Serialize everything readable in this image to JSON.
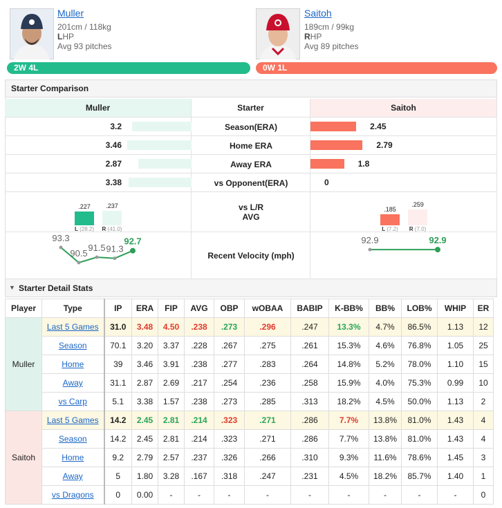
{
  "players": [
    {
      "name": "Muller",
      "size": "201cm / 118kg",
      "hand": "L",
      "throws": "HP",
      "pitches": "Avg 93 pitches",
      "record": "2W 4L"
    },
    {
      "name": "Saitoh",
      "size": "189cm / 99kg",
      "hand": "R",
      "throws": "HP",
      "pitches": "Avg 89 pitches",
      "record": "0W 1L"
    }
  ],
  "comparison": {
    "title": "Starter Comparison",
    "header": [
      "Muller",
      "Starter",
      "Saitoh"
    ],
    "rows": [
      {
        "label": "Season(ERA)",
        "values": [
          3.2,
          2.45
        ]
      },
      {
        "label": "Home ERA",
        "values": [
          3.46,
          2.79
        ]
      },
      {
        "label": "Away ERA",
        "values": [
          2.87,
          1.8
        ]
      },
      {
        "label": "vs Opponent(ERA)",
        "values": [
          3.38,
          0
        ]
      }
    ],
    "avg": {
      "label": [
        "vs L/R",
        "AVG"
      ],
      "splits": [
        [
          {
            "side": "L",
            "value": 0.227,
            "label": ".227",
            "sample": "(28.2)"
          },
          {
            "side": "R",
            "value": 0.237,
            "label": ".237",
            "sample": "(41.0)"
          }
        ],
        [
          {
            "side": "L",
            "value": 0.185,
            "label": ".185",
            "sample": "(7.2)"
          },
          {
            "side": "R",
            "value": 0.259,
            "label": ".259",
            "sample": "(7.0)"
          }
        ]
      ]
    },
    "velocity": {
      "label": "Recent Velocity (mph)",
      "series": [
        [
          93.3,
          90.5,
          91.5,
          91.3,
          92.7
        ],
        [
          92.9,
          92.9
        ]
      ]
    }
  },
  "details": {
    "title": "Starter Detail Stats",
    "columns": [
      "Player",
      "Type",
      "IP",
      "ERA",
      "FIP",
      "AVG",
      "OBP",
      "wOBAA",
      "BABIP",
      "K-BB%",
      "BB%",
      "LOB%",
      "WHIP",
      "ER"
    ],
    "groups": [
      {
        "player": "Muller",
        "rows": [
          {
            "type": "Last 5 Games",
            "cells": [
              "31.0",
              "3.48",
              "4.50",
              ".238",
              ".273",
              ".296",
              ".247",
              "13.3%",
              "4.7%",
              "86.5%",
              "1.13",
              "12"
            ]
          },
          {
            "type": "Season",
            "cells": [
              "70.1",
              "3.20",
              "3.37",
              ".228",
              ".267",
              ".275",
              ".261",
              "15.3%",
              "4.6%",
              "76.8%",
              "1.05",
              "25"
            ]
          },
          {
            "type": "Home",
            "cells": [
              "39",
              "3.46",
              "3.91",
              ".238",
              ".277",
              ".283",
              ".264",
              "14.8%",
              "5.2%",
              "78.0%",
              "1.10",
              "15"
            ]
          },
          {
            "type": "Away",
            "cells": [
              "31.1",
              "2.87",
              "2.69",
              ".217",
              ".254",
              ".236",
              ".258",
              "15.9%",
              "4.0%",
              "75.3%",
              "0.99",
              "10"
            ]
          },
          {
            "type": "vs Carp",
            "cells": [
              "5.1",
              "3.38",
              "1.57",
              ".238",
              ".273",
              ".285",
              ".313",
              "18.2%",
              "4.5%",
              "50.0%",
              "1.13",
              "2"
            ]
          }
        ]
      },
      {
        "player": "Saitoh",
        "rows": [
          {
            "type": "Last 5 Games",
            "cells": [
              "14.2",
              "2.45",
              "2.81",
              ".214",
              ".323",
              ".271",
              ".286",
              "7.7%",
              "13.8%",
              "81.0%",
              "1.43",
              "4"
            ]
          },
          {
            "type": "Season",
            "cells": [
              "14.2",
              "2.45",
              "2.81",
              ".214",
              ".323",
              ".271",
              ".286",
              "7.7%",
              "13.8%",
              "81.0%",
              "1.43",
              "4"
            ]
          },
          {
            "type": "Home",
            "cells": [
              "9.2",
              "2.79",
              "2.57",
              ".237",
              ".326",
              ".266",
              ".310",
              "9.3%",
              "11.6%",
              "78.6%",
              "1.45",
              "3"
            ]
          },
          {
            "type": "Away",
            "cells": [
              "5",
              "1.80",
              "3.28",
              ".167",
              ".318",
              ".247",
              ".231",
              "4.5%",
              "18.2%",
              "85.7%",
              "1.40",
              "1"
            ]
          },
          {
            "type": "vs Dragons",
            "cells": [
              "0",
              "0.00",
              "-",
              "-",
              "-",
              "-",
              "-",
              "-",
              "-",
              "-",
              "-",
              "0"
            ]
          }
        ]
      }
    ]
  }
}
